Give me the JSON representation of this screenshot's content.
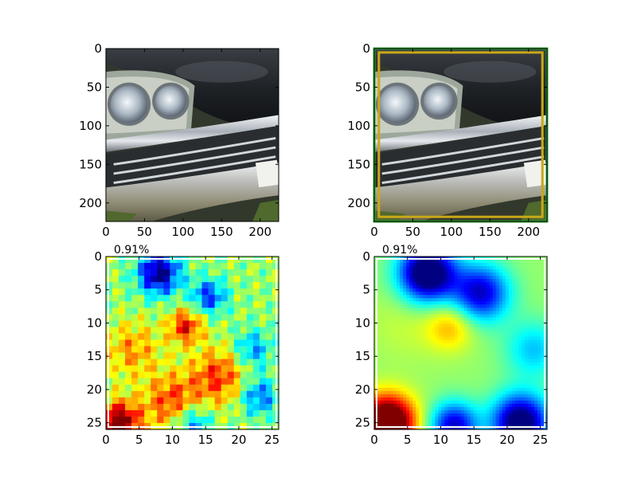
{
  "chart_data": [
    {
      "type": "image",
      "panel": "top-left",
      "content": "photo of vintage car front: dual headlights and chrome grille",
      "xlim": [
        0,
        224
      ],
      "ylim": [
        224,
        0
      ],
      "xticks": [
        0,
        50,
        100,
        150,
        200
      ],
      "yticks": [
        0,
        50,
        100,
        150,
        200
      ],
      "title": ""
    },
    {
      "type": "image",
      "panel": "top-right",
      "content": "same car photo with overlaid bounding boxes",
      "xlim": [
        0,
        224
      ],
      "ylim": [
        224,
        0
      ],
      "xticks": [
        0,
        50,
        100,
        150,
        200
      ],
      "yticks": [
        0,
        50,
        100,
        150,
        200
      ],
      "title": "",
      "boxes": [
        {
          "color": "#2ca02c",
          "x0": 0,
          "y0": 0,
          "x1": 224,
          "y1": 224
        },
        {
          "color": "#c9a818",
          "x0": 6,
          "y0": 5,
          "x1": 218,
          "y1": 218
        }
      ]
    },
    {
      "type": "heatmap",
      "panel": "bottom-left",
      "colormap": "jet",
      "smooth": false,
      "title": "0.91%",
      "xlim": [
        0,
        26
      ],
      "ylim": [
        26,
        0
      ],
      "xticks": [
        0,
        5,
        10,
        15,
        20,
        25
      ],
      "yticks": [
        0,
        5,
        10,
        15,
        20,
        25
      ],
      "blobs": [
        {
          "x": 8,
          "y": 2.5,
          "v": -0.55,
          "r": 2.2
        },
        {
          "x": 12,
          "y": 10.5,
          "v": 0.35,
          "r": 1.8
        },
        {
          "x": 2,
          "y": 25,
          "v": 0.55,
          "r": 2.2
        },
        {
          "x": 10,
          "y": 22,
          "v": 0.3,
          "r": 3
        },
        {
          "x": 17,
          "y": 18,
          "v": 0.3,
          "r": 3
        },
        {
          "x": 15.5,
          "y": 6,
          "v": -0.35,
          "r": 1.8
        },
        {
          "x": 22,
          "y": 14,
          "v": -0.25,
          "r": 2
        },
        {
          "x": 23,
          "y": 21,
          "v": -0.3,
          "r": 2
        },
        {
          "x": 13,
          "y": 25,
          "v": -0.3,
          "r": 2
        },
        {
          "x": 4,
          "y": 14,
          "v": 0.2,
          "r": 3
        }
      ]
    },
    {
      "type": "heatmap",
      "panel": "bottom-right",
      "colormap": "jet",
      "smooth": true,
      "title": "0.91%",
      "xlim": [
        0,
        26
      ],
      "ylim": [
        26,
        0
      ],
      "xticks": [
        0,
        5,
        10,
        15,
        20,
        25
      ],
      "yticks": [
        0,
        5,
        10,
        15,
        20,
        25
      ],
      "blobs": [
        {
          "x": 8,
          "y": 2.5,
          "v": -0.65,
          "r": 3
        },
        {
          "x": 16,
          "y": 5.5,
          "v": -0.45,
          "r": 3
        },
        {
          "x": 11.5,
          "y": 10.5,
          "v": 0.18,
          "r": 2.5
        },
        {
          "x": 2,
          "y": 25,
          "v": 0.75,
          "r": 2.8
        },
        {
          "x": 12,
          "y": 25.5,
          "v": -0.45,
          "r": 2.5
        },
        {
          "x": 22,
          "y": 25,
          "v": -0.6,
          "r": 3
        },
        {
          "x": 24,
          "y": 14,
          "v": -0.2,
          "r": 3
        },
        {
          "x": 5,
          "y": 10,
          "v": 0.05,
          "r": 4
        }
      ]
    }
  ]
}
